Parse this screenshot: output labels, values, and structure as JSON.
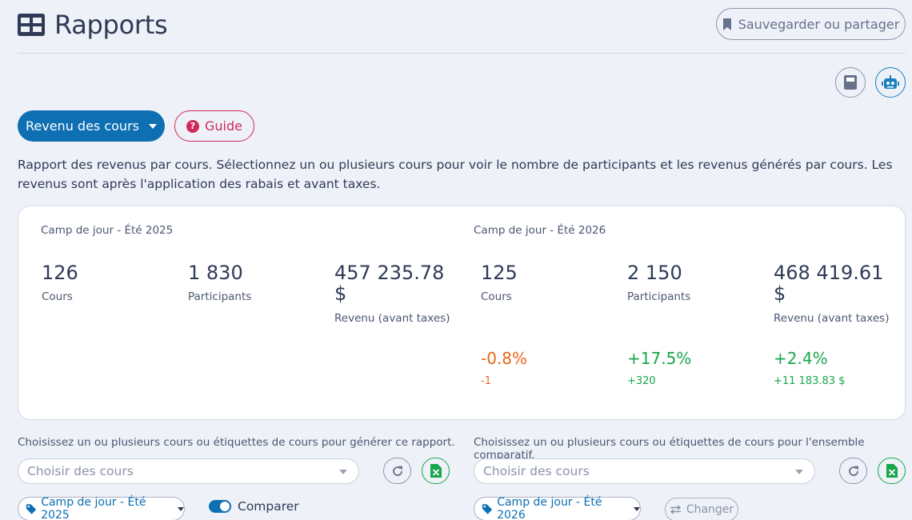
{
  "header": {
    "title": "Rapports",
    "save_label": "Sauvegarder ou partager"
  },
  "toolbar": {
    "report_label": "Revenu des cours",
    "guide_label": "Guide"
  },
  "description": "Rapport des revenus par cours. Sélectionnez un ou plusieurs cours pour voir le nombre de participants et les revenus générés par cours. Les revenus sont après l'application des rabais et avant taxes.",
  "stats": {
    "left": {
      "title": "Camp de jour - Été 2025",
      "cours_value": "126",
      "cours_label": "Cours",
      "participants_value": "1 830",
      "participants_label": "Participants",
      "revenue_value_line1": "457 235.78",
      "revenue_value_line2": "$",
      "revenue_label": "Revenu (avant taxes)"
    },
    "right": {
      "title": "Camp de jour - Été 2026",
      "cours_value": "125",
      "cours_label": "Cours",
      "participants_value": "2 150",
      "participants_label": "Participants",
      "revenue_value_line1": "468 419.61",
      "revenue_value_line2": "$",
      "revenue_label": "Revenu (avant taxes)"
    },
    "deltas": {
      "cours_pct": "-0.8%",
      "cours_abs": "-1",
      "participants_pct": "+17.5%",
      "participants_abs": "+320",
      "revenue_pct": "+2.4%",
      "revenue_abs": "+11 183.83 $"
    }
  },
  "selectors": {
    "left": {
      "hint": "Choisissez un ou plusieurs cours ou étiquettes de cours pour générer ce rapport.",
      "placeholder": "Choisir des cours",
      "tag": "Camp de jour - Été 2025"
    },
    "right": {
      "hint": "Choisissez un ou plusieurs cours ou étiquettes de cours pour l'ensemble comparatif.",
      "placeholder": "Choisir des cours",
      "tag": "Camp de jour - Été 2026"
    },
    "compare_label": "Comparer",
    "change_label": "Changer"
  },
  "colors": {
    "primary": "#0e6fb3",
    "guide": "#d02a5b",
    "negative": "#e8661a",
    "positive": "#18a64a",
    "background": "#eef1f8"
  },
  "icons": [
    "grid-icon",
    "bookmark-icon",
    "calculator-icon",
    "robot-icon",
    "question-icon",
    "refresh-icon",
    "excel-icon",
    "tag-icon",
    "swap-icon"
  ]
}
